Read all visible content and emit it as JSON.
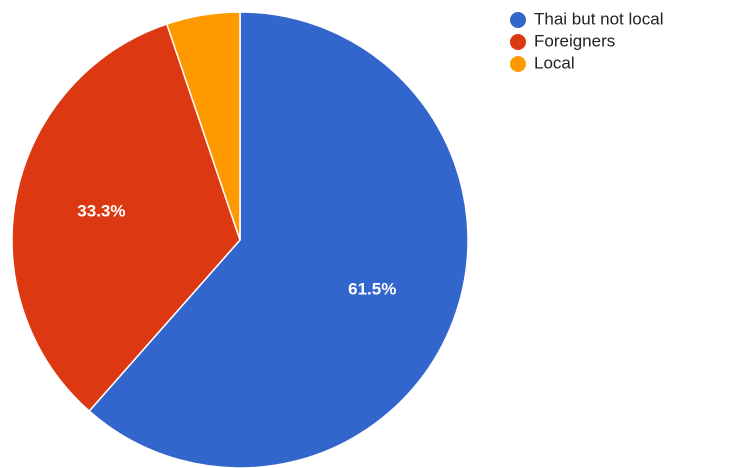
{
  "chart_data": {
    "type": "pie",
    "categories": [
      "Thai but not local",
      "Foreigners",
      "Local"
    ],
    "values": [
      61.5,
      33.3,
      5.2
    ],
    "data_labels": [
      "61.5%",
      "33.3%",
      ""
    ],
    "colors": [
      "#3366cc",
      "#dc3912",
      "#ff9900"
    ],
    "start_angle_deg": 0,
    "direction": "clockwise",
    "legend": "right",
    "title": ""
  }
}
